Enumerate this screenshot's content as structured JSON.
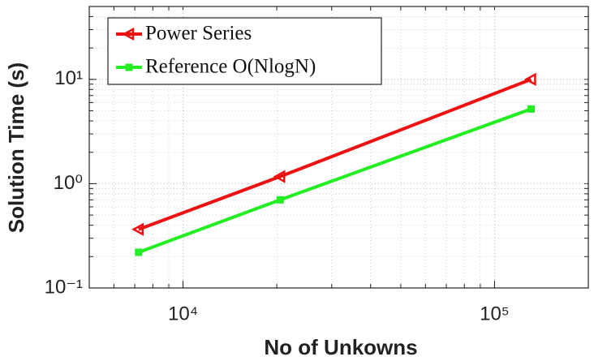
{
  "chart_data": {
    "type": "line",
    "xlabel": "No of Unkowns",
    "ylabel": "Solution Time (s)",
    "x": [
      7200,
      20500,
      131000
    ],
    "series": [
      {
        "name": "Power Series",
        "color": "#ee1111",
        "marker": "triangle-left",
        "values": [
          0.365,
          1.17,
          10
        ]
      },
      {
        "name": "Reference O(NlogN)",
        "color": "#22ee22",
        "marker": "square",
        "values": [
          0.22,
          0.7,
          5.2
        ]
      }
    ],
    "xlim": [
      5000,
      200000
    ],
    "ylim": [
      0.1,
      50
    ],
    "xscale": "log",
    "yscale": "log",
    "xticks": [
      {
        "value": 10000,
        "label": "10⁴"
      },
      {
        "value": 100000,
        "label": "10⁵"
      }
    ],
    "yticks": [
      {
        "value": 0.1,
        "label": "10⁻¹"
      },
      {
        "value": 1,
        "label": "10⁰"
      },
      {
        "value": 10,
        "label": "10¹"
      }
    ],
    "grid": true,
    "minor_grid": true,
    "legend": "upper left"
  }
}
